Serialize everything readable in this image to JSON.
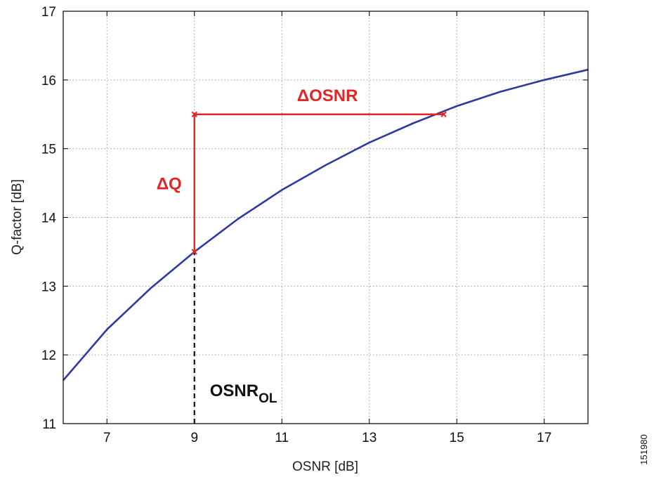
{
  "chart_data": {
    "type": "line",
    "xlabel": "OSNR [dB]",
    "ylabel": "Q-factor [dB]",
    "xlim": [
      6,
      18
    ],
    "ylim": [
      11,
      17
    ],
    "xticks": [
      7,
      9,
      11,
      13,
      15,
      17
    ],
    "yticks": [
      11,
      12,
      13,
      14,
      15,
      16,
      17
    ],
    "grid": true,
    "series": [
      {
        "color": "#2e3a9e",
        "x": [
          6,
          7,
          8,
          9,
          10,
          11,
          12,
          13,
          14,
          15,
          16,
          17,
          18
        ],
        "y": [
          11.63,
          12.37,
          12.97,
          13.5,
          13.98,
          14.4,
          14.76,
          15.09,
          15.37,
          15.62,
          15.83,
          16.0,
          16.15
        ]
      }
    ],
    "annotations": {
      "delta_q": {
        "text": "ΔQ",
        "color": "#e02626",
        "x": 9,
        "y_from": 13.5,
        "y_to": 15.5
      },
      "delta_osnr": {
        "text": "ΔOSNR",
        "color": "#e02626",
        "y": 15.5,
        "x_from": 9,
        "x_to": 14.7
      },
      "osnr_ol": {
        "text": "OSNR",
        "subscript": "OL",
        "color": "#111111",
        "x": 9,
        "y_from": 11,
        "y_to": 13.5
      }
    }
  },
  "figure_id": "151980"
}
